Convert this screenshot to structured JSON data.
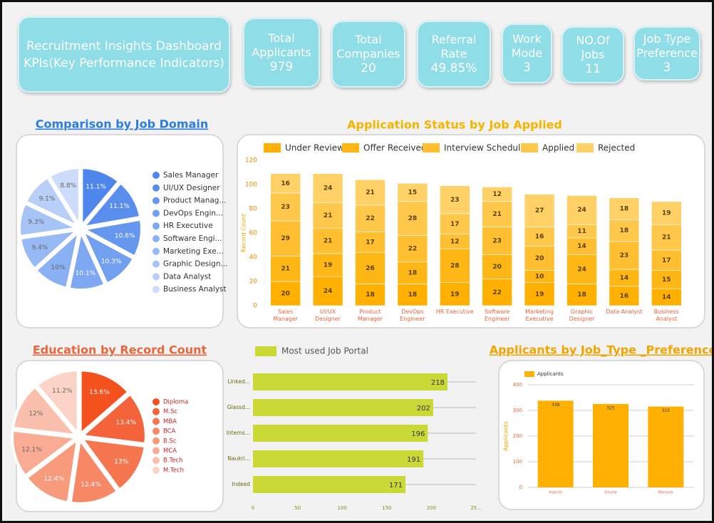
{
  "header": {
    "title": [
      "Recruitment Insights Dashboard",
      "KPIs(Key Performance Indicators)"
    ]
  },
  "kpis": [
    {
      "label": "Total Applicants",
      "value": "979"
    },
    {
      "label": "Total Companies",
      "value": "20"
    },
    {
      "label": "Referral Rate",
      "value": "49.85%"
    },
    {
      "label": "Work Mode",
      "value": "3"
    },
    {
      "label": "NO.Of Jobs",
      "value": "11"
    },
    {
      "label": "Job Type Preference",
      "value": "3"
    }
  ],
  "chart_data": [
    {
      "type": "pie",
      "title": "Comparison by Job Domain",
      "categories": [
        "Sales Manager",
        "UI/UX Designer",
        "Product Manag...",
        "DevOps Engin...",
        "HR Executive",
        "Software Engi...",
        "Marketing Exe...",
        "Graphic Design...",
        "Data Analyst",
        "Business Analyst"
      ],
      "values": [
        11.1,
        11.1,
        10.6,
        10.3,
        10.1,
        10,
        9.4,
        9.3,
        9.1,
        8.8
      ],
      "value_labels": [
        "11.1%",
        "11.1%",
        "10.6%",
        "10.3%",
        "10.1%",
        "10%",
        "9.4%",
        "9.3%",
        "9.1%",
        "8.8%"
      ],
      "colors": [
        "#4f86ec",
        "#5a8eed",
        "#6697ef",
        "#72a0f0",
        "#7ea9f2",
        "#8ab1f3",
        "#97baf5",
        "#a6c4f6",
        "#b8d0f8",
        "#cddcfa"
      ]
    },
    {
      "type": "stacked_bar",
      "title": "Application Status by Job Applied",
      "ylabel": "Record Count",
      "categories": [
        "Sales Manager",
        "UI/UX Designer",
        "Product Manager",
        "DevOps Engineer",
        "HR Executive",
        "Software Engineer",
        "Marketing Executive",
        "Graphic Designer",
        "Data Analyst",
        "Business Analyst"
      ],
      "series": [
        {
          "name": "Under Review",
          "color": "#ffb000",
          "values": [
            20,
            24,
            18,
            18,
            19,
            22,
            19,
            18,
            16,
            14
          ]
        },
        {
          "name": "Offer Received",
          "color": "#ffb716",
          "values": [
            21,
            19,
            26,
            18,
            28,
            20,
            10,
            24,
            14,
            15
          ]
        },
        {
          "name": "Interview Scheduled",
          "color": "#ffbf30",
          "values": [
            29,
            21,
            17,
            22,
            12,
            23,
            20,
            14,
            23,
            17
          ]
        },
        {
          "name": "Applied",
          "color": "#ffc84a",
          "values": [
            23,
            21,
            22,
            28,
            17,
            21,
            16,
            11,
            18,
            21
          ]
        },
        {
          "name": "Rejected",
          "color": "#ffd166",
          "values": [
            16,
            24,
            21,
            15,
            23,
            12,
            27,
            24,
            18,
            19
          ]
        }
      ],
      "ylim": [
        0,
        120
      ],
      "yticks": [
        0,
        20,
        40,
        60,
        80,
        100,
        120
      ]
    },
    {
      "type": "pie",
      "title": "Education by Record Count",
      "categories": [
        "Diploma",
        "M.Sc",
        "MBA",
        "BCA",
        "B.Sc",
        "MCA",
        "B.Tech",
        "M.Tech"
      ],
      "values": [
        13.6,
        13.4,
        13,
        12.4,
        12.4,
        12.1,
        12,
        11.2
      ],
      "value_labels": [
        "13.6%",
        "13.4%",
        "13%",
        "12.4%",
        "12.4%",
        "12.1%",
        "12%",
        "11.2%"
      ],
      "colors": [
        "#f4511e",
        "#f5633a",
        "#f67650",
        "#f78865",
        "#f89a7c",
        "#f9ac93",
        "#fbc0ad",
        "#fcd4c7"
      ]
    },
    {
      "type": "hbar",
      "categories": [
        "Linked...",
        "Glassd...",
        "Interns...",
        "Naukri...",
        "Indeed"
      ],
      "series": [
        {
          "name": "Most used Job Portal",
          "color": "#cad936",
          "values": [
            218,
            202,
            196,
            191,
            171
          ]
        }
      ],
      "xlim": [
        0,
        250
      ],
      "xticks": [
        0,
        50,
        100,
        150,
        200,
        {
          "value": 250,
          "label": "25..."
        }
      ]
    },
    {
      "type": "bar",
      "title": "Applicants by Job_Type _Preference",
      "ylabel": "Applicants",
      "categories": [
        "Hybrid",
        "Onsite",
        "Remote"
      ],
      "series": [
        {
          "name": "Applicants",
          "color": "#ffb000",
          "values": [
            338,
            325,
            315
          ]
        }
      ],
      "ylim": [
        0,
        400
      ],
      "yticks": [
        0,
        100,
        200,
        300,
        400
      ],
      "grid": true
    }
  ]
}
